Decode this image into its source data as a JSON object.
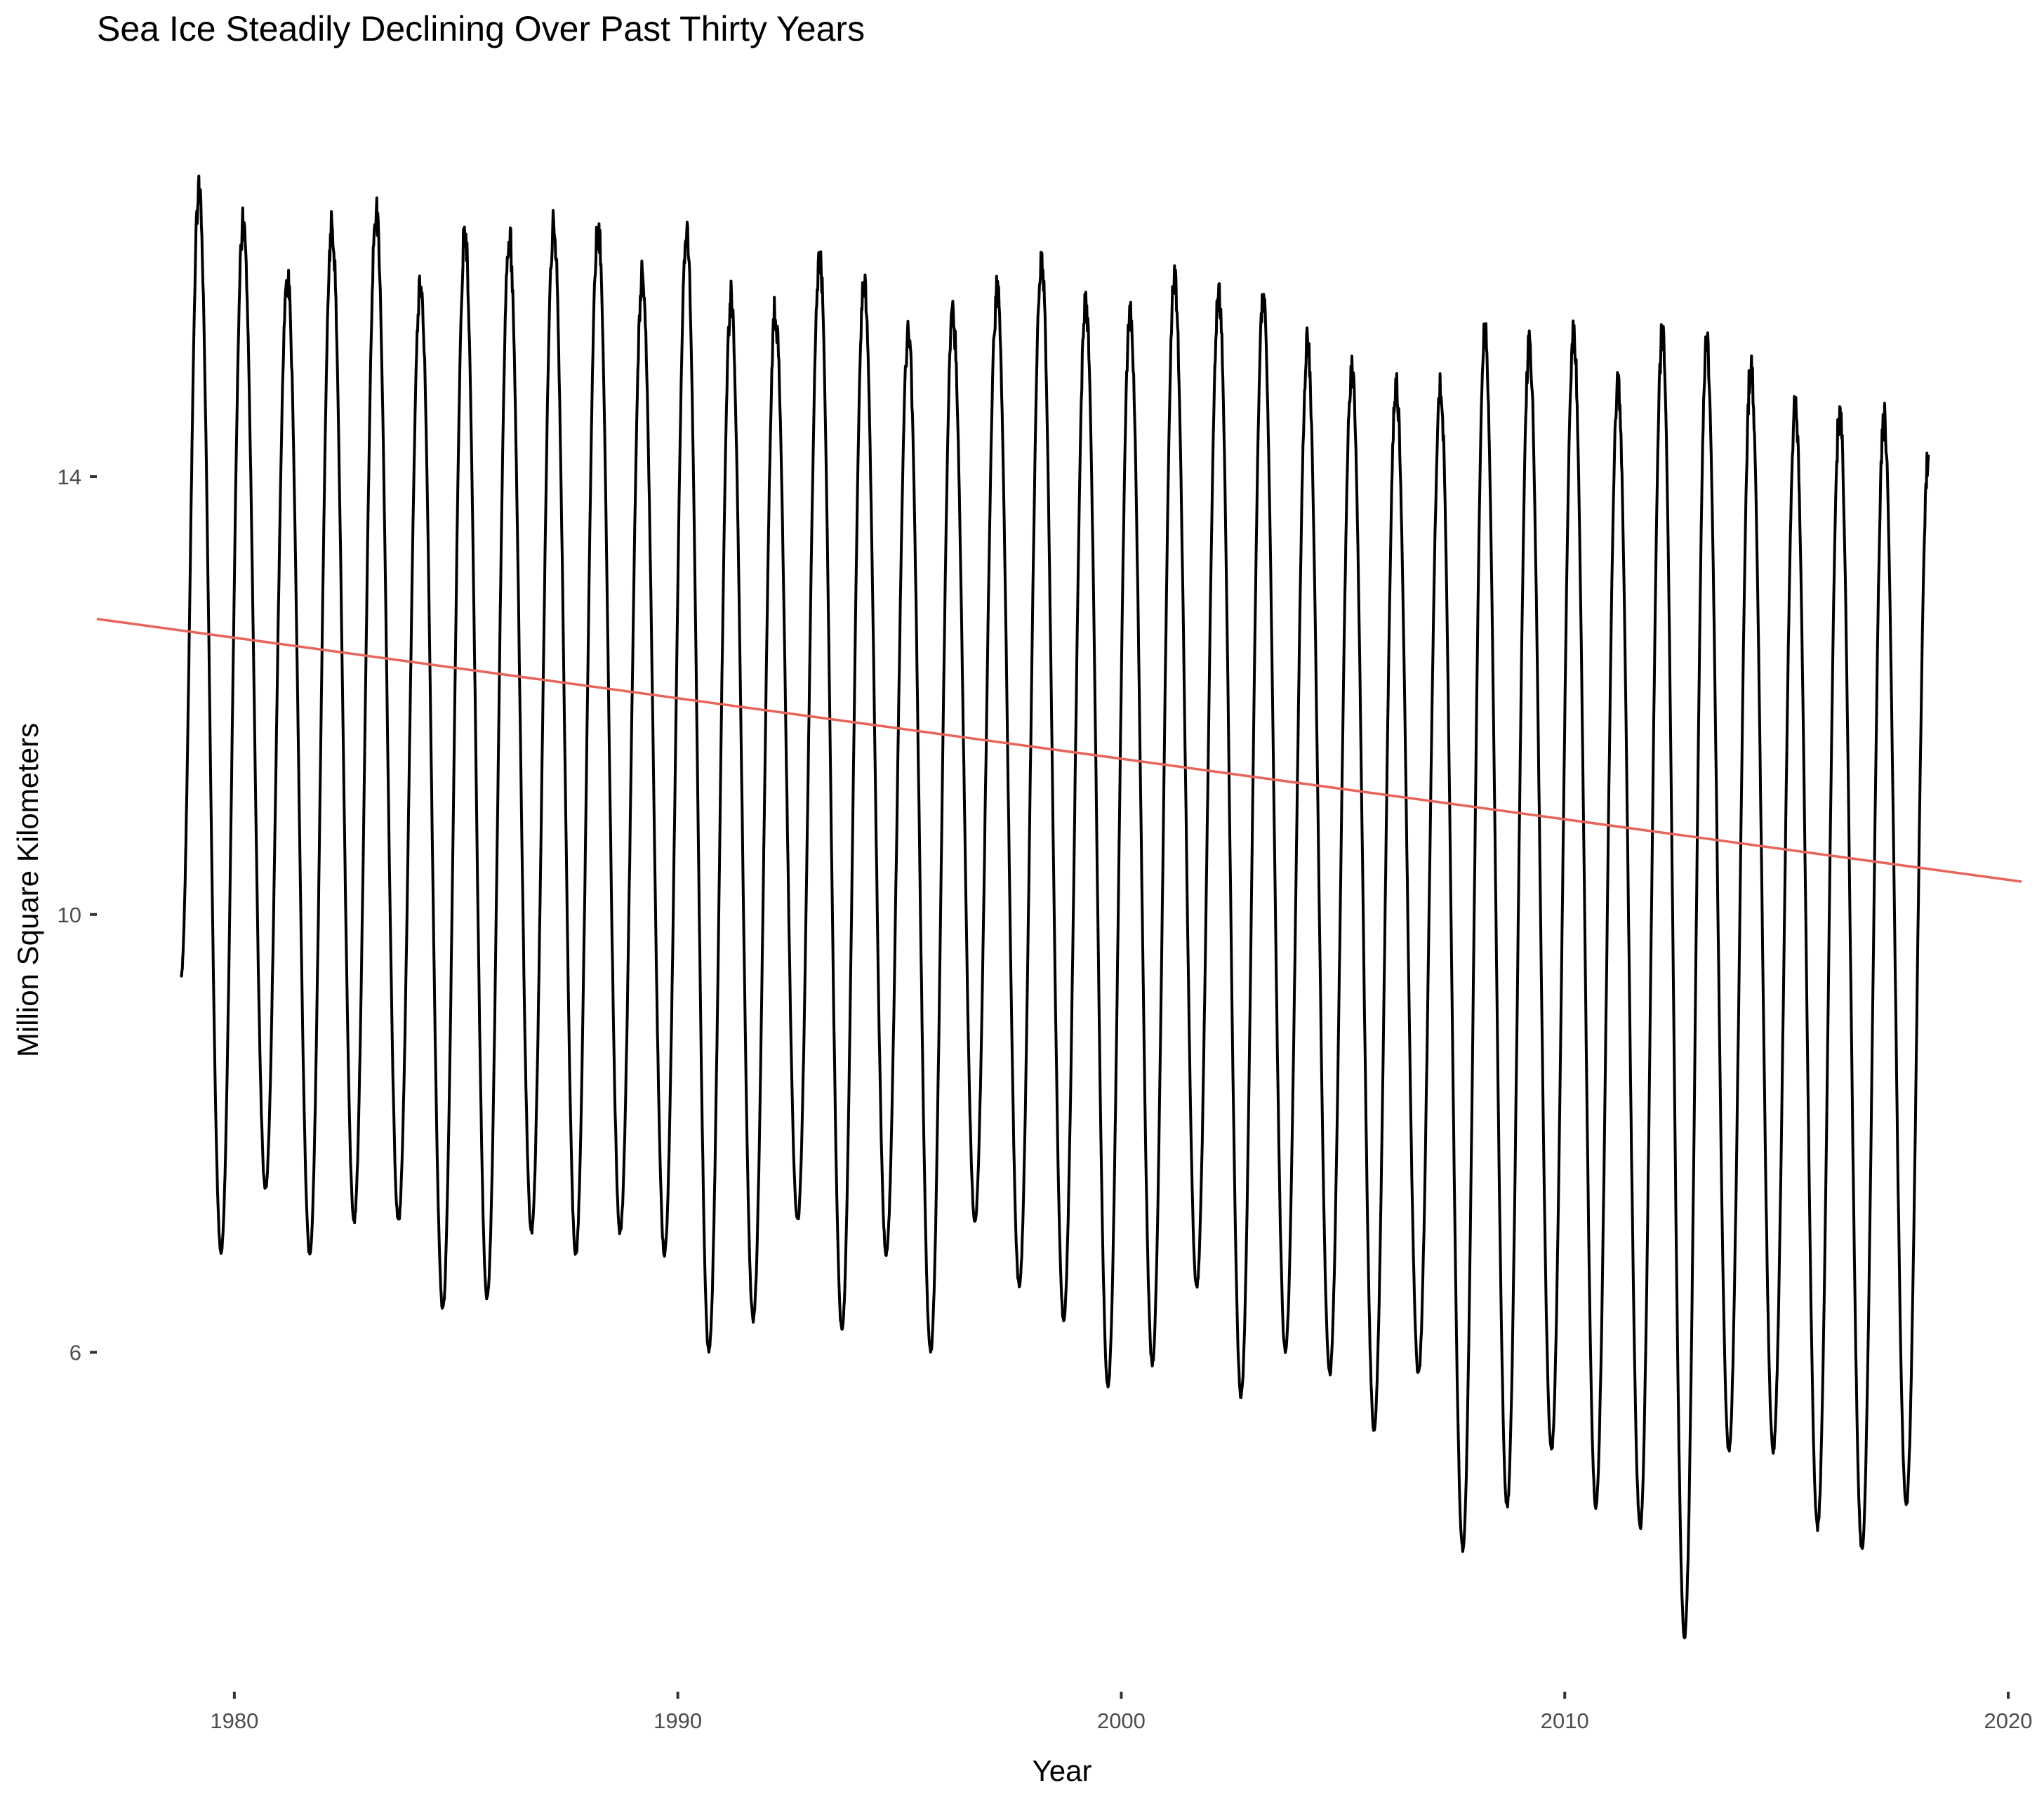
{
  "chart_data": {
    "type": "line",
    "title": "Sea Ice Steadily Declining Over Past Thirty Years",
    "xlabel": "Year",
    "ylabel": "Million Square Kilometers",
    "xlim": [
      1976.9,
      2020.3
    ],
    "ylim": [
      2.9,
      17.2
    ],
    "x_ticks": [
      1980,
      1990,
      2000,
      2010,
      2020
    ],
    "y_ticks": [
      6,
      10,
      14
    ],
    "x_tick_labels": [
      "1980",
      "1990",
      "2000",
      "2010",
      "2020"
    ],
    "y_tick_labels": [
      "6",
      "10",
      "14"
    ],
    "grid": false,
    "legend": "none",
    "series": [
      {
        "color": "#000000",
        "x_start": 1978.8,
        "annual_max_year": [
          1979.2,
          1980.2,
          1981.2,
          1982.2,
          1983.2,
          1984.2,
          1985.2,
          1986.2,
          1987.2,
          1988.2,
          1989.2,
          1990.2,
          1991.2,
          1992.2,
          1993.2,
          1994.2,
          1995.2,
          1996.2,
          1997.2,
          1998.2,
          1999.2,
          2000.2,
          2001.2,
          2002.2,
          2003.2,
          2004.2,
          2005.2,
          2006.2,
          2007.2,
          2008.2,
          2009.2,
          2010.2,
          2011.2,
          2012.2,
          2013.2,
          2014.2,
          2015.2,
          2016.2,
          2017.2
        ],
        "annual_max": [
          16.6,
          16.3,
          15.8,
          16.3,
          16.4,
          15.8,
          16.2,
          16.2,
          16.3,
          16.3,
          15.8,
          16.2,
          15.6,
          15.5,
          16.0,
          15.8,
          15.3,
          15.5,
          15.7,
          16.0,
          15.6,
          15.5,
          15.8,
          15.7,
          15.6,
          15.2,
          15.0,
          14.8,
          14.8,
          15.3,
          15.2,
          15.3,
          14.8,
          15.3,
          15.2,
          15.0,
          14.6,
          14.6,
          14.5
        ],
        "annual_min_year": [
          1979.7,
          1980.7,
          1981.7,
          1982.7,
          1983.7,
          1984.7,
          1985.7,
          1986.7,
          1987.7,
          1988.7,
          1989.7,
          1990.7,
          1991.7,
          1992.7,
          1993.7,
          1994.7,
          1995.7,
          1996.7,
          1997.7,
          1998.7,
          1999.7,
          2000.7,
          2001.7,
          2002.7,
          2003.7,
          2004.7,
          2005.7,
          2006.7,
          2007.7,
          2008.7,
          2009.7,
          2010.7,
          2011.7,
          2012.7,
          2013.7,
          2014.7,
          2015.7,
          2016.7,
          2017.7
        ],
        "annual_min": [
          6.9,
          7.5,
          6.9,
          7.2,
          7.2,
          6.4,
          6.5,
          7.1,
          6.9,
          7.1,
          6.9,
          6.0,
          6.3,
          7.2,
          6.2,
          6.9,
          6.0,
          7.2,
          6.6,
          6.3,
          5.7,
          5.9,
          6.6,
          5.6,
          6.0,
          5.8,
          5.3,
          5.8,
          4.2,
          4.6,
          5.1,
          4.6,
          4.4,
          3.4,
          5.1,
          5.1,
          4.4,
          4.2,
          4.6
        ],
        "x_end": 2018.2,
        "y_end": 14.2
      },
      {
        "color": "#e8635a",
        "type": "trend",
        "x": [
          1976.9,
          2020.3
        ],
        "y": [
          12.7,
          10.3
        ]
      }
    ]
  }
}
